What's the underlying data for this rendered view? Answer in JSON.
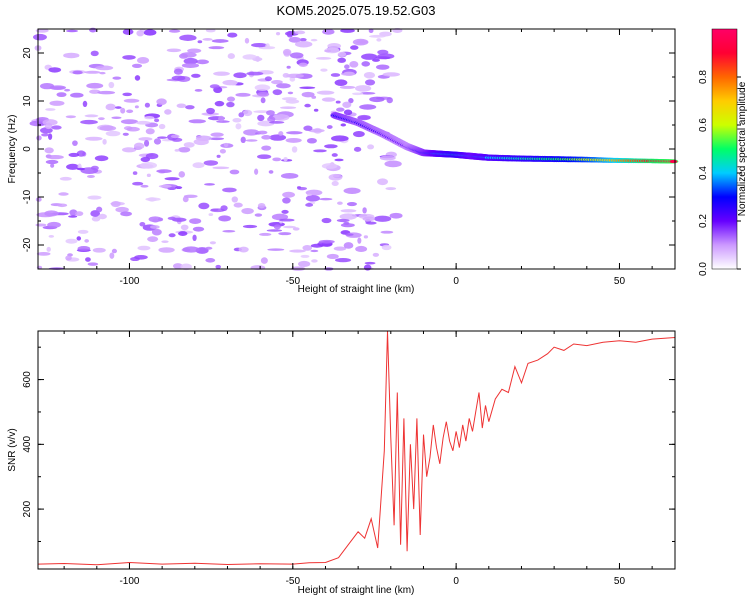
{
  "title": "KOM5.2025.075.19.52.G03",
  "chart_data": [
    {
      "type": "heatmap",
      "xlabel": "Height of straight line (km)",
      "ylabel": "Frequency (Hz)",
      "xlim": [
        -128,
        67
      ],
      "ylim": [
        -25,
        25
      ],
      "xticks": [
        "-100",
        "-50",
        "0",
        "50"
      ],
      "xtick_values": [
        -100,
        -50,
        0,
        50
      ],
      "yticks": [
        "-20",
        "-10",
        "0",
        "10",
        "20"
      ],
      "ytick_values": [
        -20,
        -10,
        0,
        10,
        20
      ],
      "colorbar": {
        "label": "Normalized spectral amplitude",
        "range": [
          0,
          1
        ],
        "ticks": [
          "0.0",
          "0.2",
          "0.4",
          "0.6",
          "0.8"
        ],
        "tick_values": [
          0.0,
          0.2,
          0.4,
          0.6,
          0.8
        ],
        "colors": [
          "#ffffff",
          "#cc99ff",
          "#6600ff",
          "#0000ff",
          "#00ccff",
          "#00ff66",
          "#ccff00",
          "#ffcc00",
          "#ff6600",
          "#ff0033",
          "#ff0066"
        ]
      },
      "ridge": {
        "x": [
          -37,
          -30,
          -22,
          -15,
          -10,
          -5,
          0,
          5,
          10,
          20,
          30,
          40,
          50,
          60,
          67
        ],
        "y": [
          7,
          5.5,
          3,
          0.5,
          -0.8,
          -1,
          -1.2,
          -1.5,
          -1.8,
          -2,
          -2.1,
          -2.2,
          -2.4,
          -2.5,
          -2.6
        ],
        "amplitude": [
          0.3,
          0.25,
          0.22,
          0.2,
          0.3,
          0.4,
          0.45,
          0.35,
          0.4,
          0.45,
          0.5,
          0.6,
          0.75,
          0.9,
          0.95
        ]
      }
    },
    {
      "type": "line",
      "xlabel": "Height of straight line (km)",
      "ylabel": "SNR (v/v)",
      "xlim": [
        -128,
        67
      ],
      "ylim": [
        15,
        750
      ],
      "xticks": [
        "-100",
        "-50",
        "0",
        "50"
      ],
      "xtick_values": [
        -100,
        -50,
        0,
        50
      ],
      "yticks": [
        "200",
        "400",
        "600"
      ],
      "ytick_values": [
        200,
        400,
        600
      ],
      "color": "#ee3333",
      "x": [
        -128,
        -120,
        -110,
        -100,
        -90,
        -80,
        -70,
        -60,
        -50,
        -45,
        -40,
        -36,
        -33,
        -30,
        -28,
        -26,
        -24,
        -22,
        -21,
        -20,
        -19,
        -18,
        -17,
        -16,
        -15,
        -14,
        -13,
        -12,
        -11,
        -10,
        -9,
        -8,
        -7,
        -6,
        -5,
        -4,
        -3,
        -2,
        -1,
        0,
        1,
        2,
        3,
        4,
        5,
        6,
        7,
        8,
        9,
        10,
        12,
        14,
        16,
        18,
        20,
        22,
        25,
        28,
        30,
        33,
        36,
        40,
        45,
        50,
        55,
        60,
        67
      ],
      "y": [
        30,
        32,
        28,
        35,
        30,
        33,
        29,
        31,
        30,
        34,
        35,
        50,
        90,
        130,
        110,
        170,
        80,
        380,
        750,
        420,
        150,
        560,
        90,
        480,
        70,
        400,
        200,
        480,
        120,
        430,
        300,
        360,
        460,
        390,
        340,
        420,
        470,
        410,
        380,
        440,
        390,
        460,
        410,
        480,
        440,
        500,
        560,
        450,
        520,
        470,
        540,
        570,
        560,
        640,
        590,
        650,
        660,
        680,
        700,
        690,
        710,
        705,
        715,
        720,
        715,
        725,
        730
      ]
    }
  ]
}
